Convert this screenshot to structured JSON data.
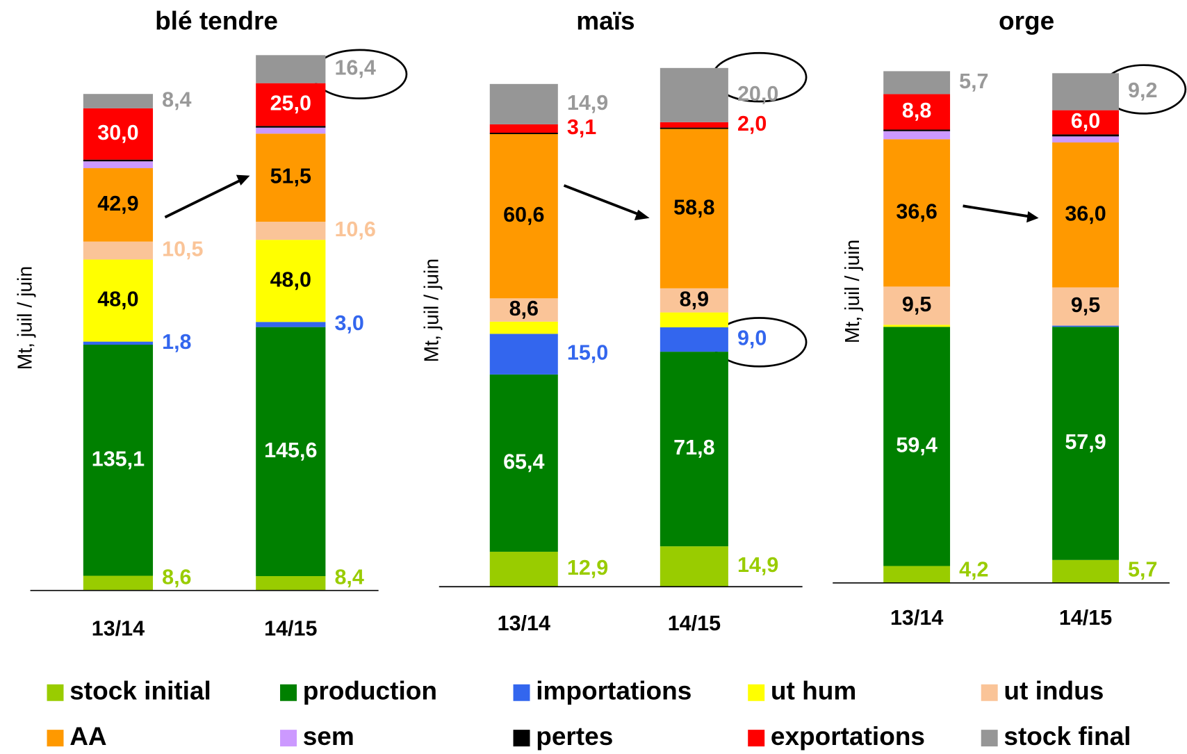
{
  "chart_data": [
    {
      "type": "bar",
      "stacked": true,
      "title": "blé tendre",
      "y_label": "Mt, juil / juin",
      "categories": [
        "13/14",
        "14/15"
      ],
      "ylim": [
        0,
        320
      ],
      "series": [
        {
          "values": [
            8.6,
            8.4
          ],
          "value_labels": [
            "8,6",
            "8,4"
          ]
        },
        {
          "values": [
            135.1,
            145.6
          ],
          "value_labels": [
            "135,1",
            "145,6"
          ]
        },
        {
          "values": [
            1.8,
            3.0
          ],
          "value_labels": [
            "1,8",
            "3,0"
          ]
        },
        {
          "values": [
            48.0,
            48.0
          ],
          "value_labels": [
            "48,0",
            "48,0"
          ]
        },
        {
          "values": [
            10.5,
            10.6
          ],
          "value_labels": [
            "10,5",
            "10,6"
          ]
        },
        {
          "values": [
            42.9,
            51.5
          ],
          "value_labels": [
            "42,9",
            "51,5"
          ]
        },
        {
          "values": [
            4,
            3.5
          ],
          "value_labels": [
            null,
            null
          ]
        },
        {
          "values": [
            1,
            1
          ],
          "value_labels": [
            null,
            null
          ]
        },
        {
          "values": [
            30.0,
            25.0
          ],
          "value_labels": [
            "30,0",
            "25,0"
          ]
        },
        {
          "values": [
            8.4,
            16.4
          ],
          "value_labels": [
            "8,4",
            "16,4"
          ]
        }
      ]
    },
    {
      "type": "bar",
      "stacked": true,
      "title": "maïs",
      "y_label": "Mt, juil / juin",
      "categories": [
        "13/14",
        "14/15"
      ],
      "ylim": [
        0,
        200
      ],
      "series": [
        {
          "values": [
            12.9,
            14.9
          ],
          "value_labels": [
            "12,9",
            "14,9"
          ]
        },
        {
          "values": [
            65.4,
            71.8
          ],
          "value_labels": [
            "65,4",
            "71,8"
          ]
        },
        {
          "values": [
            15.0,
            9.0
          ],
          "value_labels": [
            "15,0",
            "9,0"
          ]
        },
        {
          "values": [
            4.5,
            5.5
          ],
          "value_labels": [
            null,
            null
          ]
        },
        {
          "values": [
            8.6,
            8.9
          ],
          "value_labels": [
            "8,6",
            "8,9"
          ]
        },
        {
          "values": [
            60.6,
            58.8
          ],
          "value_labels": [
            "60,6",
            "58,8"
          ]
        },
        {
          "values": [
            0,
            0
          ],
          "value_labels": [
            null,
            null
          ]
        },
        {
          "values": [
            0.5,
            0.5
          ],
          "value_labels": [
            null,
            null
          ]
        },
        {
          "values": [
            3.1,
            2.0
          ],
          "value_labels": [
            "3,1",
            "2,0"
          ]
        },
        {
          "values": [
            14.9,
            20.0
          ],
          "value_labels": [
            "14,9",
            "20,0"
          ]
        }
      ]
    },
    {
      "type": "bar",
      "stacked": true,
      "title": "orge",
      "y_label": "Mt, juil / juin",
      "categories": [
        "13/14",
        "14/15"
      ],
      "ylim": [
        0,
        135
      ],
      "series": [
        {
          "values": [
            4.2,
            5.7
          ],
          "value_labels": [
            "4,2",
            "5,7"
          ]
        },
        {
          "values": [
            59.4,
            57.9
          ],
          "value_labels": [
            "59,4",
            "57,9"
          ]
        },
        {
          "values": [
            0,
            0.3
          ],
          "value_labels": [
            null,
            null
          ]
        },
        {
          "values": [
            0.5,
            0
          ],
          "value_labels": [
            null,
            null
          ]
        },
        {
          "values": [
            9.5,
            9.5
          ],
          "value_labels": [
            "9,5",
            "9,5"
          ]
        },
        {
          "values": [
            36.6,
            36.0
          ],
          "value_labels": [
            "36,6",
            "36,0"
          ]
        },
        {
          "values": [
            2,
            1.5
          ],
          "value_labels": [
            null,
            null
          ]
        },
        {
          "values": [
            0.4,
            0.5
          ],
          "value_labels": [
            null,
            null
          ]
        },
        {
          "values": [
            8.8,
            6.0
          ],
          "value_labels": [
            "8,8",
            "6,0"
          ]
        },
        {
          "values": [
            5.7,
            9.2
          ],
          "value_labels": [
            "5,7",
            "9,2"
          ]
        }
      ]
    }
  ],
  "legend": [
    {
      "name": "stock initial",
      "color": "#99cc00"
    },
    {
      "name": "production",
      "color": "#008000"
    },
    {
      "name": "importations",
      "color": "#3366ee"
    },
    {
      "name": "ut hum",
      "color": "#ffff00"
    },
    {
      "name": "ut indus",
      "color": "#fac498"
    },
    {
      "name": "AA",
      "color": "#ff9900"
    },
    {
      "name": "sem",
      "color": "#cc99ff"
    },
    {
      "name": "pertes",
      "color": "#000000"
    },
    {
      "name": "exportations",
      "color": "#ff0000"
    },
    {
      "name": "stock final",
      "color": "#969696"
    }
  ]
}
